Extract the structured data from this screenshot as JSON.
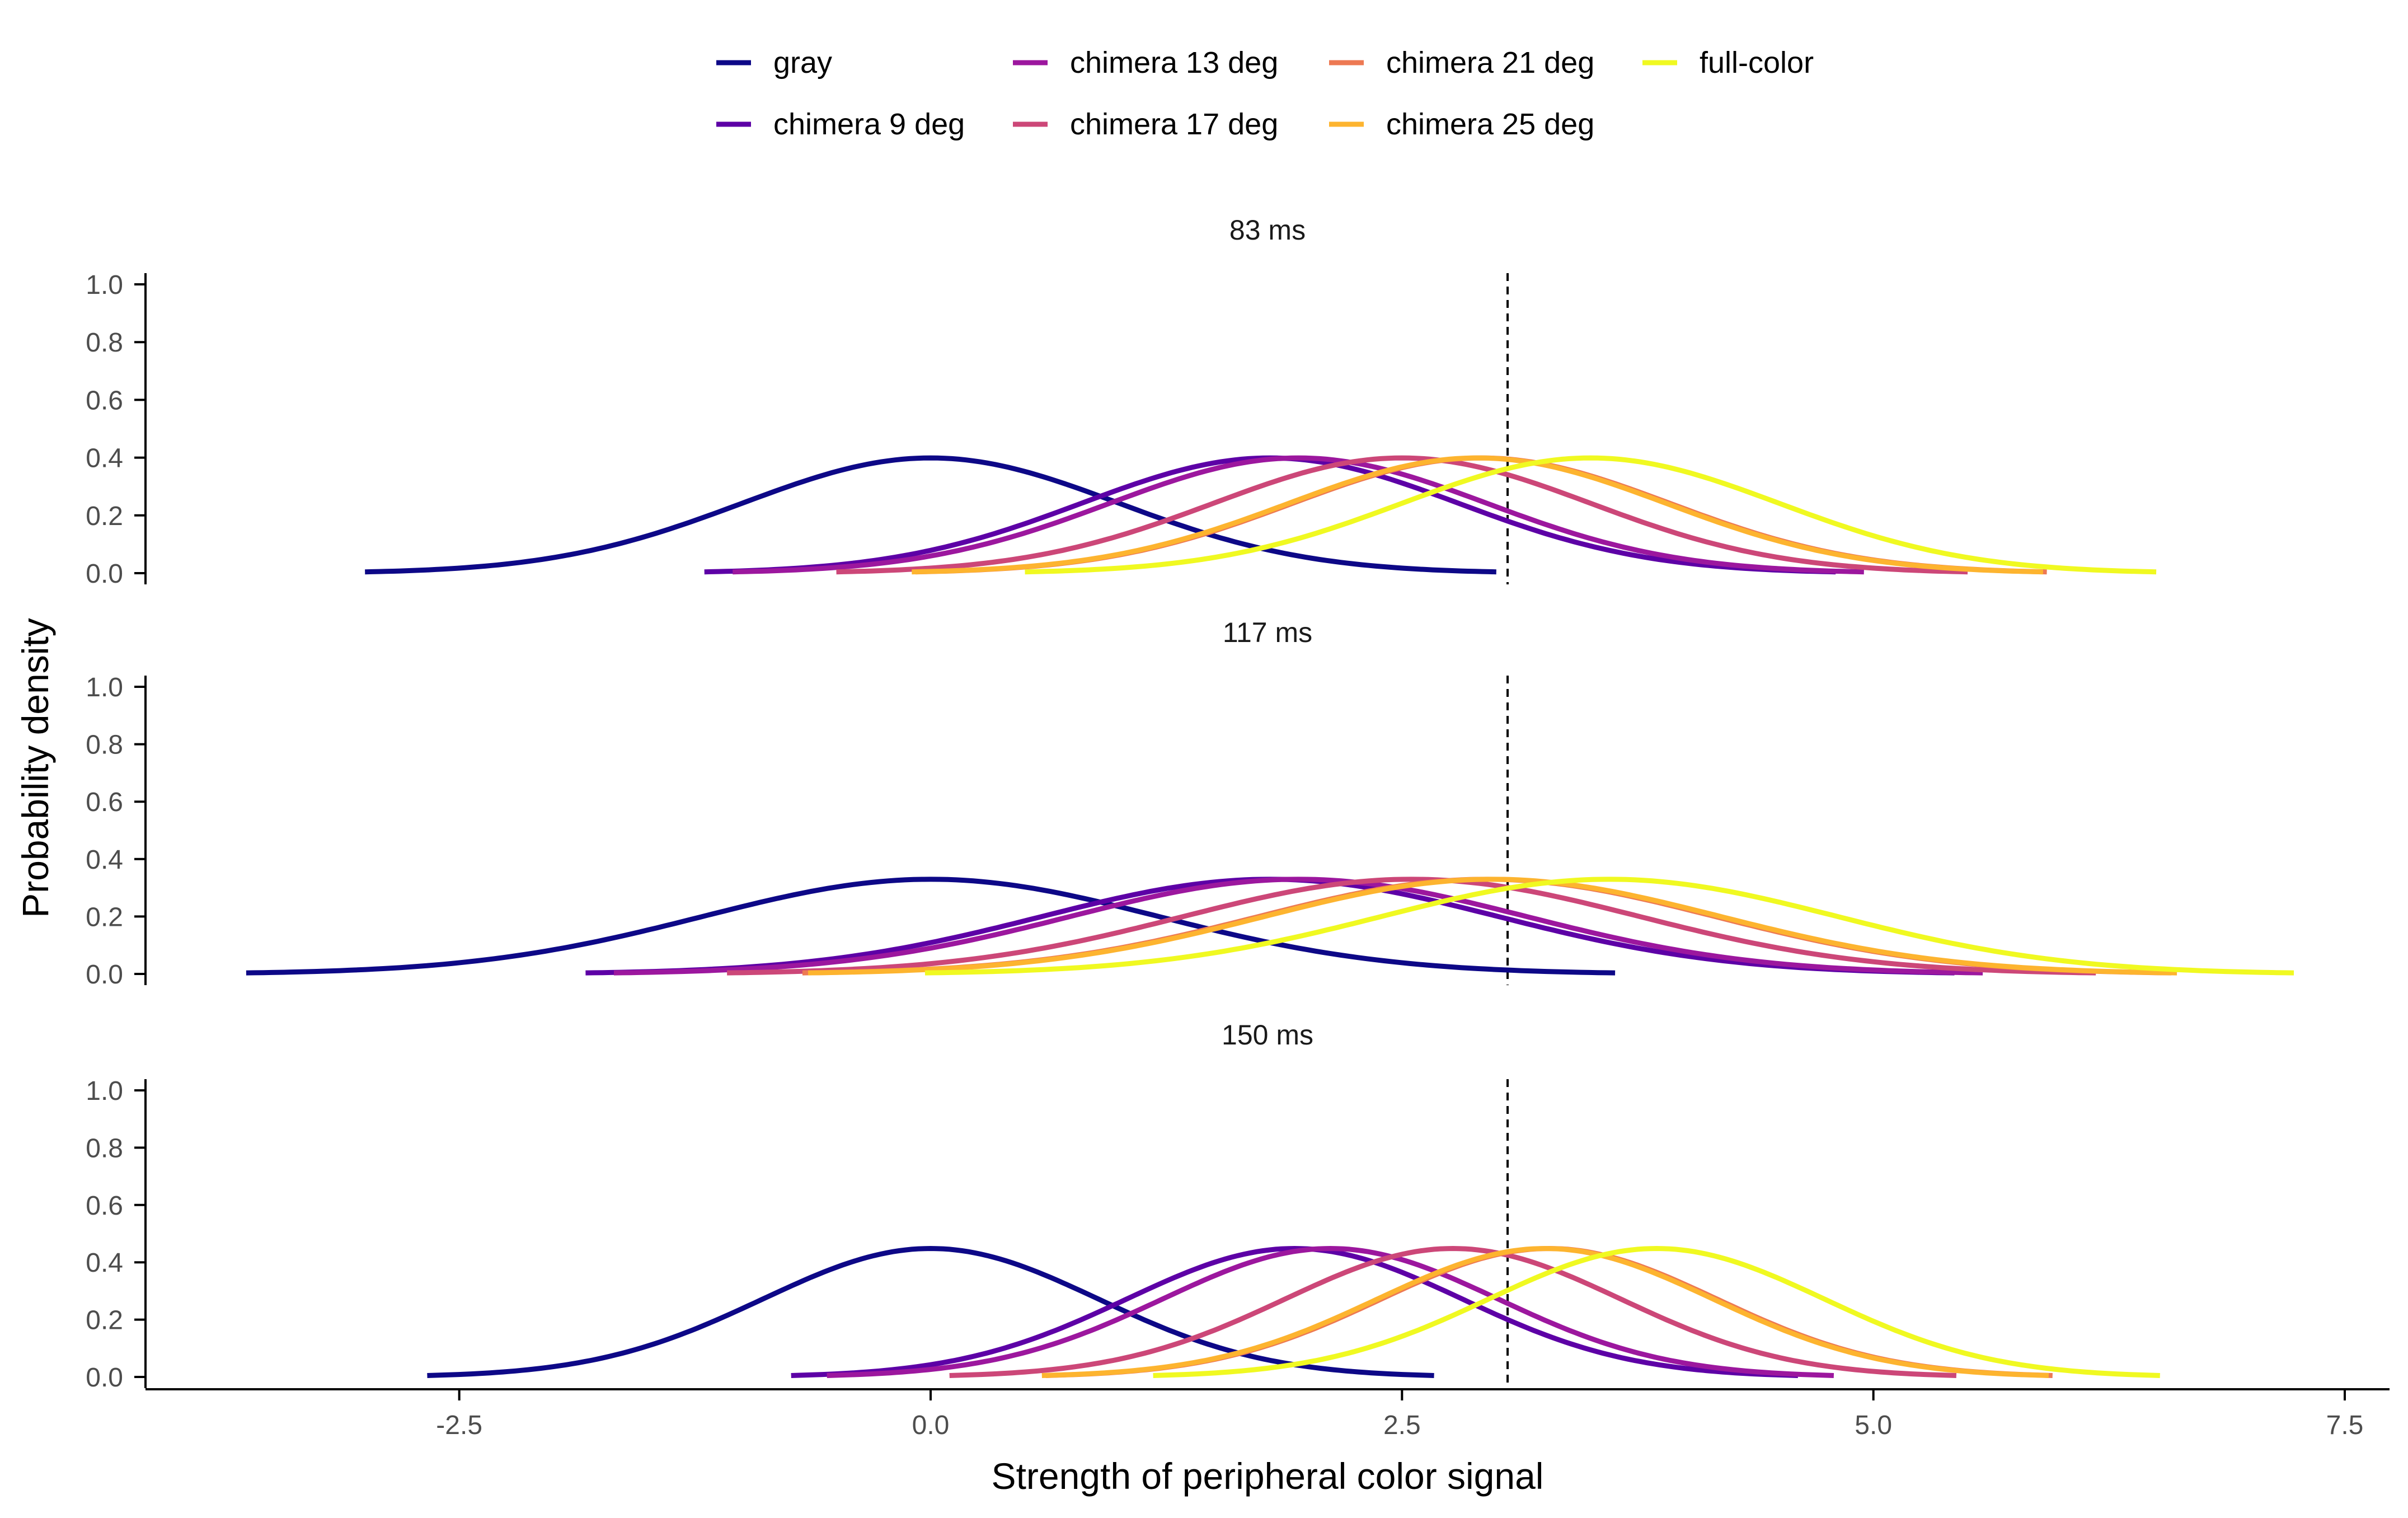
{
  "colors": {
    "gray": "#0d0887",
    "chimera 9 deg": "#5d01a6",
    "chimera 13 deg": "#9c179e",
    "chimera 17 deg": "#cc4778",
    "chimera 21 deg": "#ed7953",
    "chimera 25 deg": "#fdb42f",
    "full-color": "#f0f921"
  },
  "chart_data": {
    "type": "line",
    "title": "",
    "xlabel": "Strength of peripheral color signal",
    "ylabel": "Probability density",
    "xlim": [
      -2.5,
      7.5
    ],
    "ylim": [
      0,
      1.0
    ],
    "xticks": [
      "-2.5",
      "0.0",
      "2.5",
      "5.0",
      "7.5"
    ],
    "yticks": [
      "0.0",
      "0.2",
      "0.4",
      "0.6",
      "0.8",
      "1.0"
    ],
    "criterion": 3.06,
    "legend": {
      "position": "top",
      "entries": [
        "gray",
        "chimera 9 deg",
        "chimera 13 deg",
        "chimera 17 deg",
        "chimera 21 deg",
        "chimera 25 deg",
        "full-color"
      ]
    },
    "panels": [
      {
        "title": "83 ms",
        "sd": 1.0,
        "series": [
          {
            "name": "gray",
            "mean": 0.0
          },
          {
            "name": "chimera 9 deg",
            "mean": 1.8
          },
          {
            "name": "chimera 13 deg",
            "mean": 1.95
          },
          {
            "name": "chimera 17 deg",
            "mean": 2.5
          },
          {
            "name": "chimera 21 deg",
            "mean": 2.92
          },
          {
            "name": "chimera 25 deg",
            "mean": 2.9
          },
          {
            "name": "full-color",
            "mean": 3.5
          }
        ]
      },
      {
        "title": "117 ms",
        "sd": 1.21,
        "series": [
          {
            "name": "gray",
            "mean": 0.0
          },
          {
            "name": "chimera 9 deg",
            "mean": 1.8
          },
          {
            "name": "chimera 13 deg",
            "mean": 1.95
          },
          {
            "name": "chimera 17 deg",
            "mean": 2.55
          },
          {
            "name": "chimera 21 deg",
            "mean": 2.95
          },
          {
            "name": "chimera 25 deg",
            "mean": 2.98
          },
          {
            "name": "full-color",
            "mean": 3.6
          }
        ]
      },
      {
        "title": "150 ms",
        "sd": 0.89,
        "series": [
          {
            "name": "gray",
            "mean": 0.0
          },
          {
            "name": "chimera 9 deg",
            "mean": 1.93
          },
          {
            "name": "chimera 13 deg",
            "mean": 2.12
          },
          {
            "name": "chimera 17 deg",
            "mean": 2.77
          },
          {
            "name": "chimera 21 deg",
            "mean": 3.28
          },
          {
            "name": "chimera 25 deg",
            "mean": 3.26
          },
          {
            "name": "full-color",
            "mean": 3.85
          }
        ]
      }
    ]
  }
}
